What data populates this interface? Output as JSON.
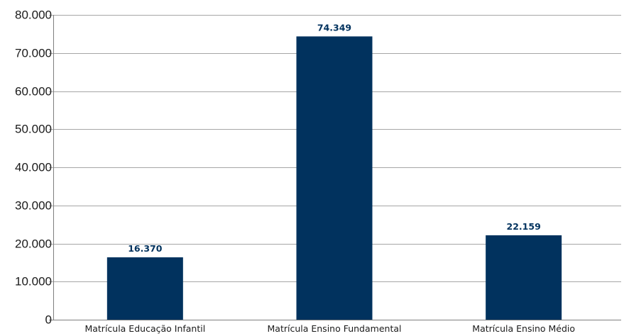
{
  "chart_data": {
    "type": "bar",
    "categories": [
      "Matrícula Educação Infantil",
      "Matrícula Ensino Fundamental",
      "Matrícula Ensino Médio"
    ],
    "values": [
      16370,
      74349,
      22159
    ],
    "value_labels": [
      "16.370",
      "74.349",
      "22.159"
    ],
    "ylim": [
      0,
      80000
    ],
    "yticks": [
      0,
      10000,
      20000,
      30000,
      40000,
      50000,
      60000,
      70000,
      80000
    ],
    "ytick_labels": [
      "0",
      "10.000",
      "20.000",
      "30.000",
      "40.000",
      "50.000",
      "60.000",
      "70.000",
      "80.000"
    ],
    "grid": true,
    "legend": "none",
    "colors": {
      "bar": "#01325e",
      "data_label": "#01325e",
      "grid": "#a6a6a6",
      "axis": "#7f7f7f"
    }
  }
}
